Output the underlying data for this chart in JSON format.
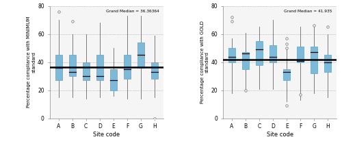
{
  "sites": [
    "A",
    "B",
    "C",
    "D",
    "E",
    "F",
    "G",
    "H"
  ],
  "min_data": {
    "whisker_low": [
      15,
      15,
      14,
      15,
      16,
      14,
      14,
      15
    ],
    "q1": [
      27,
      30,
      27,
      27,
      20,
      28,
      36,
      28
    ],
    "median": [
      36,
      33,
      30,
      30,
      27,
      35,
      45,
      33
    ],
    "q3": [
      45,
      45,
      40,
      45,
      35,
      45,
      54,
      40
    ],
    "whisker_high": [
      70,
      60,
      60,
      68,
      50,
      73,
      73,
      59
    ],
    "outliers_high": [
      [
        76
      ],
      [
        69
      ],
      [],
      [],
      [],
      [],
      [],
      []
    ],
    "outliers_low": [
      [],
      [],
      [],
      [],
      [],
      [],
      [],
      [
        0
      ]
    ]
  },
  "gold_data": {
    "whisker_low": [
      18,
      21,
      21,
      21,
      12,
      13,
      18,
      15
    ],
    "q1": [
      40,
      35,
      38,
      40,
      27,
      40,
      32,
      33
    ],
    "median": [
      44,
      46,
      49,
      44,
      33,
      41,
      47,
      40
    ],
    "q3": [
      50,
      47,
      55,
      52,
      35,
      51,
      51,
      45
    ],
    "whisker_high": [
      57,
      61,
      65,
      70,
      50,
      65,
      65,
      60
    ],
    "outliers_high": [
      [
        72,
        69
      ],
      [],
      [],
      [],
      [
        57,
        53,
        50
      ],
      [],
      [
        66
      ],
      [
        65
      ]
    ],
    "outliers_low": [
      [],
      [
        20
      ],
      [],
      [],
      [
        9
      ],
      [
        17
      ],
      [],
      []
    ]
  },
  "grand_median_min": 36.36364,
  "grand_median_gold": 41.935,
  "ylabel_min": "Percentage compliance with MINIMUM\nstandard",
  "ylabel_gold": "Percentage compliance with GOLD\nstandard",
  "xlabel": "Site code",
  "box_color": "#7db9d8",
  "box_edge_color": "#6aaac9",
  "median_color": "black",
  "whisker_color": "#666666",
  "outlier_color": "white",
  "outlier_edge_color": "#666666",
  "grand_median_color": "black",
  "bg_color": "#f5f5f5",
  "ylim": [
    0,
    80
  ],
  "yticks": [
    0,
    20,
    40,
    60,
    80
  ],
  "figsize": [
    5.0,
    2.16
  ],
  "dpi": 100
}
